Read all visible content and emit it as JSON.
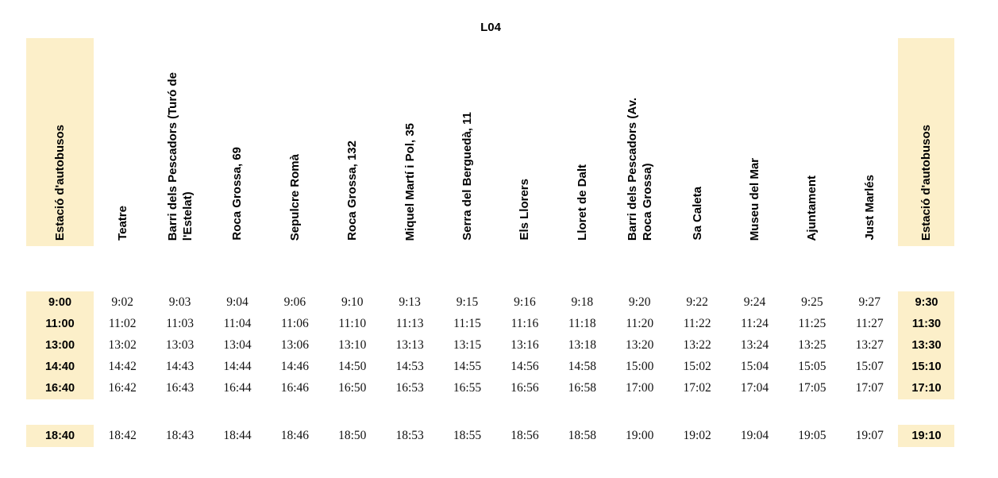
{
  "title": "L04",
  "colors": {
    "highlight": "#fcefc9",
    "text": "#000000"
  },
  "stops": [
    "Estació d'autobusos",
    "Teatre",
    "Barri dels Pescadors (Turó de\nl'Estelat)",
    "Roca Grossa, 69",
    "Sepulcre Romà",
    "Roca Grossa, 132",
    "Miquel Martí i Pol, 35",
    "Serra del Berguedà, 11",
    "Els Llorers",
    "Lloret de Dalt",
    "Barri dels Pescadors (Av.\nRoca Grossa)",
    "Sa Caleta",
    "Museu del Mar",
    "Ajuntament",
    "Just Marlés",
    "Estació d'autobusos"
  ],
  "highlighted_columns": [
    0,
    15
  ],
  "schedule": {
    "main_rows": [
      [
        "9:00",
        "9:02",
        "9:03",
        "9:04",
        "9:06",
        "9:10",
        "9:13",
        "9:15",
        "9:16",
        "9:18",
        "9:20",
        "9:22",
        "9:24",
        "9:25",
        "9:27",
        "9:30"
      ],
      [
        "11:00",
        "11:02",
        "11:03",
        "11:04",
        "11:06",
        "11:10",
        "11:13",
        "11:15",
        "11:16",
        "11:18",
        "11:20",
        "11:22",
        "11:24",
        "11:25",
        "11:27",
        "11:30"
      ],
      [
        "13:00",
        "13:02",
        "13:03",
        "13:04",
        "13:06",
        "13:10",
        "13:13",
        "13:15",
        "13:16",
        "13:18",
        "13:20",
        "13:22",
        "13:24",
        "13:25",
        "13:27",
        "13:30"
      ],
      [
        "14:40",
        "14:42",
        "14:43",
        "14:44",
        "14:46",
        "14:50",
        "14:53",
        "14:55",
        "14:56",
        "14:58",
        "15:00",
        "15:02",
        "15:04",
        "15:05",
        "15:07",
        "15:10"
      ],
      [
        "16:40",
        "16:42",
        "16:43",
        "16:44",
        "16:46",
        "16:50",
        "16:53",
        "16:55",
        "16:56",
        "16:58",
        "17:00",
        "17:02",
        "17:04",
        "17:05",
        "17:07",
        "17:10"
      ]
    ],
    "late_rows": [
      [
        "18:40",
        "18:42",
        "18:43",
        "18:44",
        "18:46",
        "18:50",
        "18:53",
        "18:55",
        "18:56",
        "18:58",
        "19:00",
        "19:02",
        "19:04",
        "19:05",
        "19:07",
        "19:10"
      ]
    ]
  }
}
